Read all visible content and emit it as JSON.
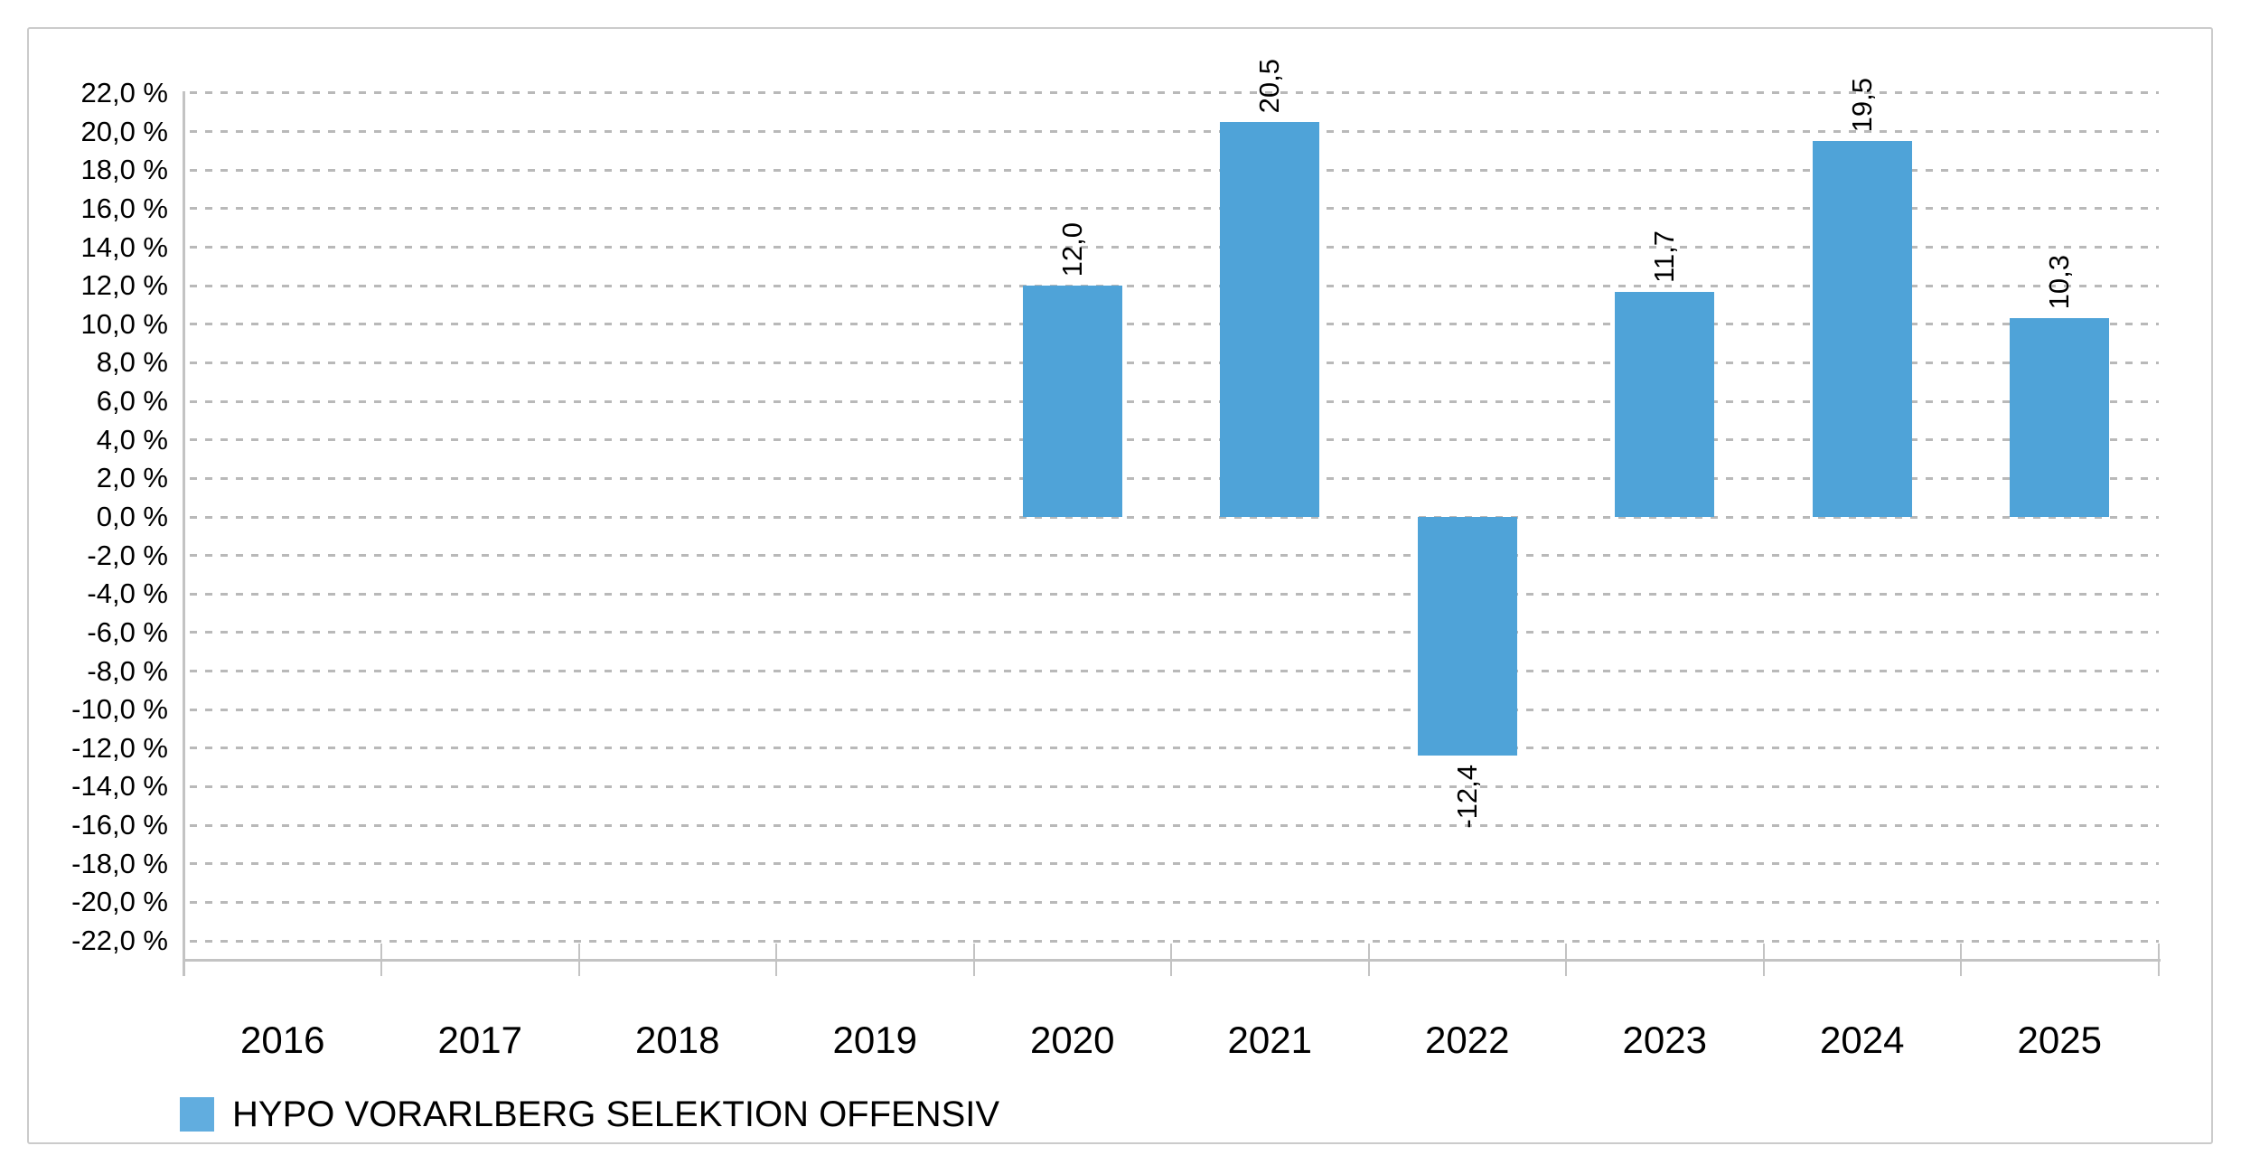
{
  "chart_data": {
    "type": "bar",
    "categories": [
      "2016",
      "2017",
      "2018",
      "2019",
      "2020",
      "2021",
      "2022",
      "2023",
      "2024",
      "2025"
    ],
    "series": [
      {
        "name": "HYPO VORARLBERG SELEKTION OFFENSIV",
        "values": [
          null,
          null,
          null,
          null,
          12.0,
          20.5,
          -12.4,
          11.7,
          19.5,
          10.3
        ],
        "value_labels": [
          null,
          null,
          null,
          null,
          "12,0",
          "20,5",
          "-12,4",
          "11,7",
          "19,5",
          "10,3"
        ]
      }
    ],
    "ylim": [
      -22,
      22
    ],
    "ytick_step": 2,
    "ytick_values": [
      22,
      20,
      18,
      16,
      14,
      12,
      10,
      8,
      6,
      4,
      2,
      0,
      -2,
      -4,
      -6,
      -8,
      -10,
      -12,
      -14,
      -16,
      -18,
      -20,
      -22
    ],
    "ytick_labels": [
      "22,0 %",
      "20,0 %",
      "18,0 %",
      "16,0 %",
      "14,0 %",
      "12,0 %",
      "10,0 %",
      "8,0 %",
      "6,0 %",
      "4,0 %",
      "2,0 %",
      "0,0 %",
      "-2,0 %",
      "-4,0 %",
      "-6,0 %",
      "-8,0 %",
      "-10,0 %",
      "-12,0 %",
      "-14,0 %",
      "-16,0 %",
      "-18,0 %",
      "-20,0 %",
      "-22,0 %"
    ],
    "grid": "horizontal-dashed",
    "legend_position": "bottom-left",
    "colors": {
      "bar": "#4FA3D8",
      "legend_swatch": "#61ADDF",
      "gridline": "#b9b9b9",
      "axis": "#c3c3c3",
      "text": "#000000",
      "frame_border": "#cbcbcb"
    }
  }
}
